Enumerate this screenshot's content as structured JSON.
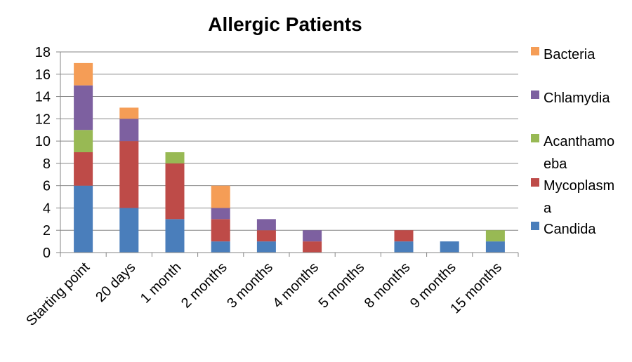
{
  "chart_data": {
    "type": "bar",
    "stacked": true,
    "title": "Allergic Patients",
    "xlabel": "",
    "ylabel": "",
    "ylim": [
      0,
      18
    ],
    "yticks": [
      0,
      2,
      4,
      6,
      8,
      10,
      12,
      14,
      16,
      18
    ],
    "grid": true,
    "legend_position": "right",
    "categories": [
      "Starting point",
      "20 days",
      "1 month",
      "2 months",
      "3 months",
      "4 months",
      "5 months",
      "8 months",
      "9 months",
      "15 months"
    ],
    "series": [
      {
        "name": "Candida",
        "color": "#4a7ebb",
        "values": [
          6,
          4,
          3,
          1,
          1,
          0,
          0,
          1,
          1,
          1
        ]
      },
      {
        "name": "Mycoplasma",
        "color": "#be4b48",
        "values": [
          3,
          6,
          5,
          2,
          1,
          1,
          0,
          1,
          0,
          0
        ]
      },
      {
        "name": "Acanthamoeba",
        "color": "#98b954",
        "values": [
          2,
          0,
          1,
          0,
          0,
          0,
          0,
          0,
          0,
          1
        ]
      },
      {
        "name": "Chlamydia",
        "color": "#7d60a0",
        "values": [
          4,
          2,
          0,
          1,
          1,
          1,
          0,
          0,
          0,
          0
        ]
      },
      {
        "name": "Bacteria",
        "color": "#f59d56",
        "values": [
          2,
          1,
          0,
          2,
          0,
          0,
          0,
          0,
          0,
          0
        ]
      }
    ],
    "legend": [
      {
        "lines": [
          "Bacteria"
        ],
        "series": "Bacteria"
      },
      {
        "lines": [
          "Chlamydia"
        ],
        "series": "Chlamydia"
      },
      {
        "lines": [
          "Acanthamo",
          "eba"
        ],
        "series": "Acanthamoeba"
      },
      {
        "lines": [
          "Mycoplasm",
          "a"
        ],
        "series": "Mycoplasma"
      },
      {
        "lines": [
          "Candida"
        ],
        "series": "Candida"
      }
    ]
  }
}
